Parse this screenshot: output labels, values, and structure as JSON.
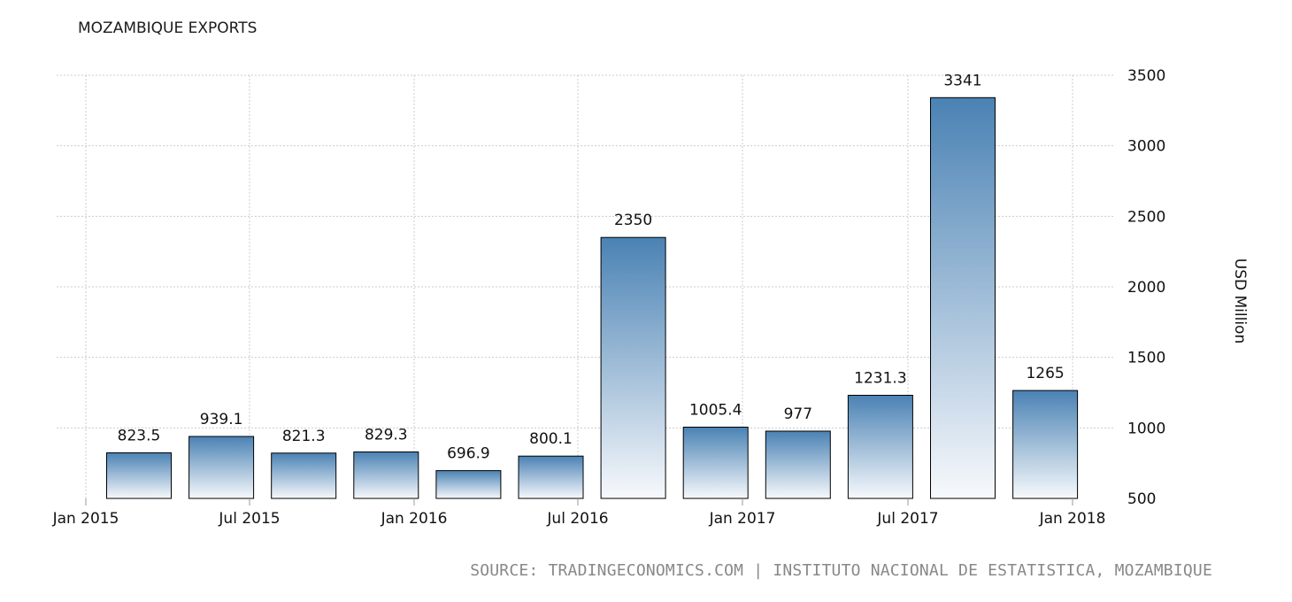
{
  "chart_data": {
    "type": "bar",
    "title": "MOZAMBIQUE EXPORTS",
    "ylabel": "USD Million",
    "xlabel": "",
    "ylim": [
      500,
      3500
    ],
    "yticks": [
      500,
      1000,
      1500,
      2000,
      2500,
      3000,
      3500
    ],
    "x_tick_labels": [
      "Jan 2015",
      "Jul 2015",
      "Jan 2016",
      "Jul 2016",
      "Jan 2017",
      "Jul 2017",
      "Jan 2018"
    ],
    "values": [
      823.5,
      939.1,
      821.3,
      829.3,
      696.9,
      800.1,
      2350,
      1005.4,
      977,
      1231.3,
      3341,
      1265
    ],
    "data_labels": [
      "823.5",
      "939.1",
      "821.3",
      "829.3",
      "696.9",
      "800.1",
      "2350",
      "1005.4",
      "977",
      "1231.3",
      "3341",
      "1265"
    ],
    "grid": true,
    "y_axis_position": "right",
    "bar_color_top": "#4a82b4",
    "bar_color_bottom": "#f7f9fc",
    "bar_outline": "#000000"
  },
  "source": "SOURCE: TRADINGECONOMICS.COM | INSTITUTO NACIONAL DE ESTATISTICA, MOZAMBIQUE"
}
